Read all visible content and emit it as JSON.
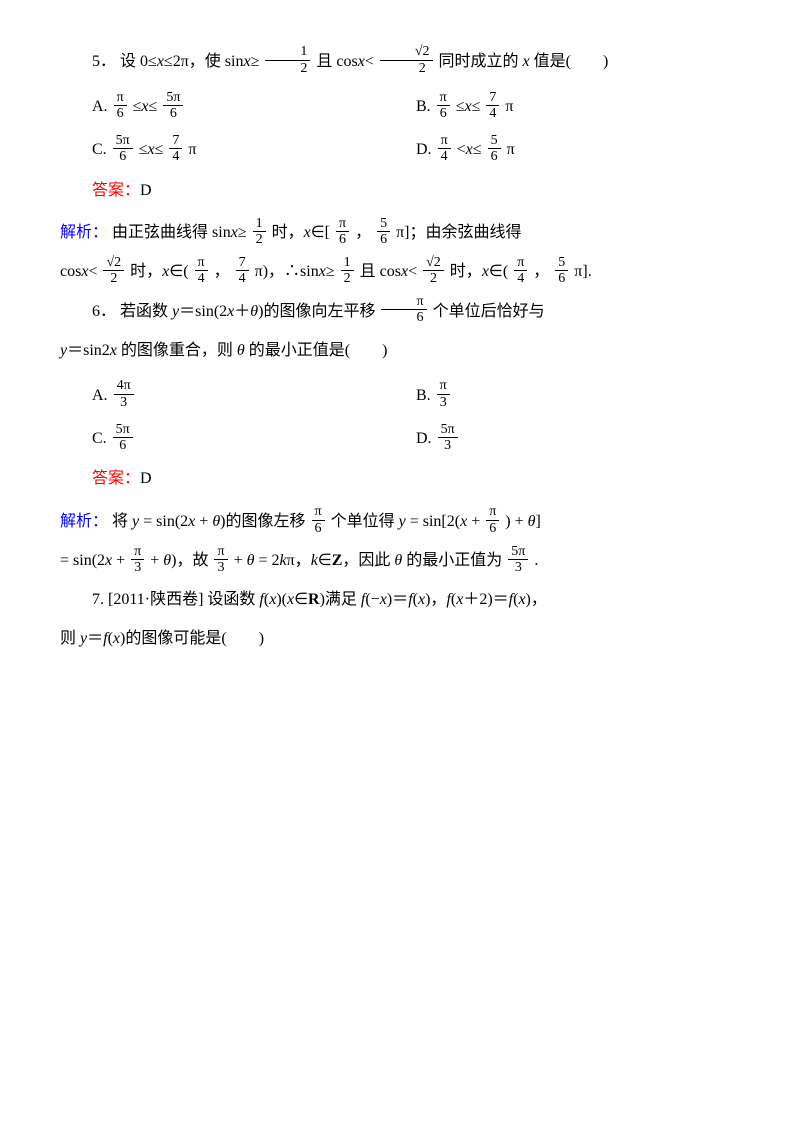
{
  "q5": {
    "number": "5．",
    "stem_before_frac1": "设 0≤",
    "x_le_2pi": "≤2π，使 sin",
    "ge": "≥",
    "frac1_num": "1",
    "frac1_den": "2",
    "and": "且 cos",
    "lt": "<",
    "frac2_num": "√2",
    "frac2_den": "2",
    "tail": " 同时成立的 ",
    "tail2": " 值是(　　)",
    "optA_label": "A.",
    "optA_f1n": "π",
    "optA_f1d": "6",
    "optA_mid": "≤",
    "optA_mid2": "≤",
    "optA_f2n": "5π",
    "optA_f2d": "6",
    "optB_label": "B.",
    "optB_f1n": "π",
    "optB_f1d": "6",
    "optB_mid": "≤",
    "optB_mid2": "≤",
    "optB_f2n": "7",
    "optB_f2d": "4",
    "optB_tail": "π",
    "optC_label": "C. ",
    "optC_f1n": "5π",
    "optC_f1d": "6",
    "optC_mid": "≤",
    "optC_mid2": "≤",
    "optC_f2n": "7",
    "optC_f2d": "4",
    "optC_tail": "π",
    "optD_label": "D.",
    "optD_f1n": "π",
    "optD_f1d": "4",
    "optD_mid": "<",
    "optD_mid2": "≤",
    "optD_f2n": "5",
    "optD_f2d": "6",
    "optD_tail": "π",
    "answer_label": "答案：",
    "answer_value": "D",
    "analysis_label": "解析：",
    "ana_p1a": "由正弦曲线得 sin",
    "ana_p1b": "≥",
    "ana_f1n": "1",
    "ana_f1d": "2",
    "ana_p1c": "时，",
    "ana_p1d": "∈[",
    "ana_f2n": "π",
    "ana_f2d": "6",
    "ana_p1e": "，",
    "ana_f3n": "5",
    "ana_f3d": "6",
    "ana_p1f": "π]；由余弦曲线得",
    "ana_p2a": "cos",
    "ana_p2b": "<",
    "ana_f4n": "√2",
    "ana_f4d": "2",
    "ana_p2c": " 时，",
    "ana_p2d": "∈(",
    "ana_f5n": "π",
    "ana_f5d": "4",
    "ana_p2e": "，",
    "ana_f6n": "7",
    "ana_f6d": "4",
    "ana_p2f": "π)，∴sin",
    "ana_p2g": "≥",
    "ana_f7n": "1",
    "ana_f7d": "2",
    "ana_p2h": "且 cos",
    "ana_p2i": "<",
    "ana_f8n": "√2",
    "ana_f8d": "2",
    "ana_p2j": " 时，",
    "ana_p2k": "∈(",
    "ana_f9n": "π",
    "ana_f9d": "4",
    "ana_p2l": "，",
    "ana_f10n": "5",
    "ana_f10d": "6",
    "ana_p2m": "π]."
  },
  "q6": {
    "number": "6．",
    "stem1": "若函数 ",
    "stem2": "＝sin(2",
    "stem3": "＋",
    "stem4": ")的图像向左平移",
    "f1n": "π",
    "f1d": "6",
    "stem5": "个单位后恰好与",
    "line2a": "＝sin2",
    "line2b": " 的图像重合，则 ",
    "line2c": " 的最小正值是(　　)",
    "optA_label": "A. ",
    "optA_fn": "4π",
    "optA_fd": "3",
    "optB_label": "B.",
    "optB_fn": "π",
    "optB_fd": "3",
    "optC_label": "C. ",
    "optC_fn": "5π",
    "optC_fd": "6",
    "optD_label": "D. ",
    "optD_fn": "5π",
    "optD_fd": "3",
    "answer_label": "答案：",
    "answer_value": "D",
    "analysis_label": "解析：",
    "ana1a": "将 ",
    "ana1b": " = sin(2",
    "ana1c": " + ",
    "ana1d": ")的图像左移",
    "ana_f1n": "π",
    "ana_f1d": "6",
    "ana1e": "个单位得 ",
    "ana1f": " = sin[2(",
    "ana1g": " + ",
    "ana_f2n": "π",
    "ana_f2d": "6",
    "ana1h": ") + ",
    "ana1i": "]",
    "ana2a": "= sin(2",
    "ana2b": " + ",
    "ana_f3n": "π",
    "ana_f3d": "3",
    "ana2c": " + ",
    "ana2d": ")，故",
    "ana_f4n": "π",
    "ana_f4d": "3",
    "ana2e": " + ",
    "ana2f": " = 2",
    "ana2g": "π，",
    "ana2h": "∈",
    "ana2i": "Z",
    "ana2j": "，因此 ",
    "ana2k": " 的最小正值为 ",
    "ana_f5n": "5π",
    "ana_f5d": "3",
    "ana2l": " ."
  },
  "q7": {
    "number": "7. ",
    "src": "[2011·陕西卷]",
    "stem1": "设函数 ",
    "stem2": "(",
    "stem3": ")(",
    "stem4": "∈",
    "stem5": "R",
    "stem6": ")满足 ",
    "stem7": "(−",
    "stem8": ")＝",
    "stem9": "(",
    "stem10": ")，",
    "stem11": "(",
    "stem12": "＋2)＝",
    "stem13": "(",
    "stem14": ")，",
    "line2a": "则 ",
    "line2b": "＝",
    "line2c": "(",
    "line2d": ")的图像可能是(　　)"
  }
}
